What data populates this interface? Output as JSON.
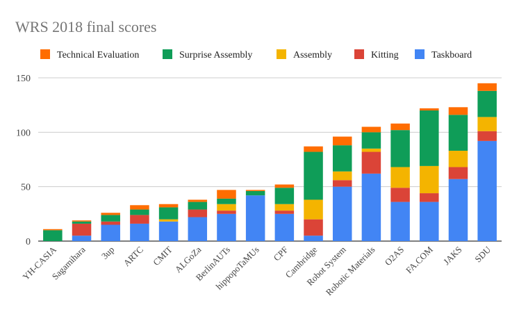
{
  "chart_data": {
    "type": "bar",
    "stacked": true,
    "title": "WRS 2018 final scores",
    "xlabel": "",
    "ylabel": "",
    "ylim": [
      0,
      150
    ],
    "yticks": [
      0,
      50,
      100,
      150
    ],
    "grid": true,
    "legend_position": "top",
    "categories": [
      "YH-CASIA",
      "Sagamihara",
      "3up",
      "ARTC",
      "CMIT",
      "ALGoZa",
      "BerlinAUTs",
      "hippopoTaMUs",
      "CPF",
      "Cambridge",
      "Robot System",
      "Robotic Materials",
      "O2AS",
      "FA.COM",
      "JAKS",
      "SDU"
    ],
    "series": [
      {
        "name": "Taskboard",
        "color": "#4285f4",
        "values": [
          0,
          5,
          15,
          16,
          18,
          22,
          25,
          42,
          25,
          5,
          50,
          62,
          36,
          36,
          57,
          92
        ]
      },
      {
        "name": "Kitting",
        "color": "#db4437",
        "values": [
          0,
          11,
          3,
          8,
          0,
          7,
          3,
          0,
          3,
          15,
          6,
          20,
          13,
          8,
          11,
          9
        ]
      },
      {
        "name": "Assembly",
        "color": "#f4b400",
        "values": [
          0,
          0,
          0,
          0,
          2,
          0,
          6,
          0,
          6,
          18,
          8,
          3,
          19,
          25,
          15,
          13
        ]
      },
      {
        "name": "Surprise Assembly",
        "color": "#0f9d58",
        "values": [
          10,
          2,
          6,
          5,
          11,
          7,
          5,
          4,
          15,
          44,
          24,
          15,
          34,
          51,
          33,
          24
        ]
      },
      {
        "name": "Technical Evaluation",
        "color": "#ff6d01",
        "values": [
          1,
          1,
          2,
          4,
          3,
          2,
          8,
          1,
          3,
          5,
          8,
          5,
          6,
          2,
          7,
          7
        ]
      }
    ],
    "legend_order": [
      "Technical Evaluation",
      "Surprise Assembly",
      "Assembly",
      "Kitting",
      "Taskboard"
    ]
  }
}
